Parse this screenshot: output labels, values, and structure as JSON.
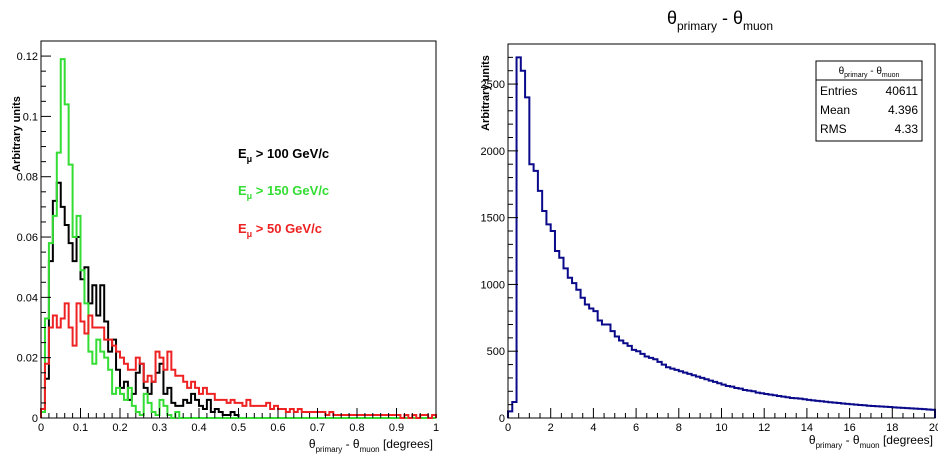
{
  "chart_data": [
    {
      "type": "histogram",
      "title": "",
      "xlabel": {
        "main": "θ",
        "sub1": "primary",
        "mid": " - θ",
        "sub2": "muon",
        "unit": " [degrees]"
      },
      "ylabel": "Arbitrary units",
      "xlim": [
        0,
        1
      ],
      "ylim": [
        0,
        0.125
      ],
      "xticks": [
        0,
        0.1,
        0.2,
        0.3,
        0.4,
        0.5,
        0.6,
        0.7,
        0.8,
        0.9,
        1
      ],
      "xtick_labels": [
        "0",
        "0.1",
        "0.2",
        "0.3",
        "0.4",
        "0.5",
        "0.6",
        "0.7",
        "0.8",
        "0.9",
        "1"
      ],
      "yticks": [
        0,
        0.02,
        0.04,
        0.06,
        0.08,
        0.1,
        0.12
      ],
      "ytick_labels": [
        "0",
        "0.02",
        "0.04",
        "0.06",
        "0.08",
        "0.1",
        "0.12"
      ],
      "bin_width": 0.01,
      "legend_placement": "right-middle",
      "series": [
        {
          "label_main": "E",
          "label_sub": "μ",
          "label_rest": " > 100 GeV/c",
          "color": "#000000",
          "values": [
            0.002,
            0.013,
            0.052,
            0.072,
            0.078,
            0.07,
            0.064,
            0.058,
            0.052,
            0.06,
            0.046,
            0.05,
            0.038,
            0.044,
            0.034,
            0.044,
            0.032,
            0.022,
            0.026,
            0.016,
            0.01,
            0.012,
            0.006,
            0.008,
            0.015,
            0.018,
            0.01,
            0.008,
            0.012,
            0.015,
            0.018,
            0.008,
            0.01,
            0.005,
            0.004,
            0.004,
            0.006,
            0.005,
            0.008,
            0.006,
            0.004,
            0.003,
            0.006,
            0.002,
            0.003,
            0.002,
            0.001,
            0.001,
            0.002,
            0.001,
            0,
            0,
            0,
            0,
            0,
            0,
            0,
            0,
            0,
            0,
            0,
            0,
            0,
            0,
            0,
            0,
            0,
            0,
            0,
            0,
            0,
            0,
            0,
            0,
            0,
            0,
            0,
            0,
            0,
            0,
            0,
            0,
            0,
            0,
            0,
            0,
            0,
            0,
            0,
            0,
            0,
            0,
            0,
            0,
            0,
            0,
            0,
            0,
            0,
            0
          ]
        },
        {
          "label_main": "E",
          "label_sub": "μ",
          "label_rest": " > 150 GeV/c",
          "color": "#33dd33",
          "values": [
            0.002,
            0.033,
            0.058,
            0.067,
            0.088,
            0.119,
            0.104,
            0.084,
            0.06,
            0.067,
            0.049,
            0.038,
            0.022,
            0.018,
            0.026,
            0.022,
            0.02,
            0.016,
            0.008,
            0.01,
            0.008,
            0.006,
            0.01,
            0.004,
            0.002,
            0.001,
            0.008,
            0.005,
            0.002,
            0.001,
            0.006,
            0.004,
            0.001,
            0,
            0.002,
            0,
            0,
            0,
            0,
            0,
            0,
            0,
            0,
            0,
            0,
            0,
            0,
            0,
            0,
            0,
            0,
            0,
            0,
            0,
            0,
            0,
            0,
            0,
            0,
            0,
            0,
            0,
            0,
            0,
            0,
            0,
            0,
            0,
            0,
            0,
            0,
            0,
            0,
            0,
            0,
            0,
            0,
            0,
            0,
            0,
            0,
            0,
            0,
            0,
            0,
            0,
            0,
            0,
            0,
            0,
            0,
            0,
            0,
            0,
            0,
            0,
            0,
            0,
            0,
            0
          ]
        },
        {
          "label_main": "E",
          "label_sub": "μ",
          "label_rest": " > 50 GeV/c",
          "color": "#ee2222",
          "values": [
            0.003,
            0.018,
            0.03,
            0.034,
            0.03,
            0.033,
            0.038,
            0.03,
            0.024,
            0.038,
            0.032,
            0.028,
            0.034,
            0.03,
            0.03,
            0.03,
            0.026,
            0.026,
            0.024,
            0.022,
            0.02,
            0.018,
            0.016,
            0.016,
            0.02,
            0.018,
            0.012,
            0.014,
            0.012,
            0.022,
            0.02,
            0.016,
            0.022,
            0.016,
            0.014,
            0.014,
            0.012,
            0.01,
            0.012,
            0.01,
            0.008,
            0.01,
            0.008,
            0.008,
            0.006,
            0.006,
            0.006,
            0.005,
            0.006,
            0.005,
            0.005,
            0.004,
            0.006,
            0.004,
            0.004,
            0.004,
            0.004,
            0.005,
            0.003,
            0.004,
            0.003,
            0.003,
            0.002,
            0.003,
            0.002,
            0.003,
            0.002,
            0.002,
            0.002,
            0.002,
            0.002,
            0.002,
            0.001,
            0.002,
            0.001,
            0.001,
            0.001,
            0.001,
            0.001,
            0.001,
            0.001,
            0.001,
            0.001,
            0.001,
            0.001,
            0.001,
            0.001,
            0.001,
            0.001,
            0.001,
            0.001,
            0,
            0.001,
            0,
            0.001,
            0,
            0.001,
            0.001,
            0,
            0.001
          ]
        }
      ]
    },
    {
      "type": "histogram",
      "title": {
        "main": "θ",
        "sub1": "primary",
        "mid": " - θ",
        "sub2": "muon"
      },
      "xlabel": {
        "main": "θ",
        "sub1": "primary",
        "mid": " - θ",
        "sub2": "muon",
        "unit": " [degrees]"
      },
      "ylabel": "Arbitrary units",
      "xlim": [
        0,
        20
      ],
      "ylim": [
        0,
        2800
      ],
      "xticks": [
        0,
        2,
        4,
        6,
        8,
        10,
        12,
        14,
        16,
        18,
        20
      ],
      "xtick_labels": [
        "0",
        "2",
        "4",
        "6",
        "8",
        "10",
        "12",
        "14",
        "16",
        "18",
        "20"
      ],
      "yticks": [
        0,
        500,
        1000,
        1500,
        2000,
        2500
      ],
      "ytick_labels": [
        "0",
        "500",
        "1000",
        "1500",
        "2000",
        "2500"
      ],
      "bin_width": 0.2,
      "series": [
        {
          "color": "#0a0a8a",
          "values": [
            50,
            120,
            2700,
            2600,
            2400,
            1900,
            1850,
            1700,
            1550,
            1450,
            1400,
            1250,
            1200,
            1120,
            1050,
            1010,
            960,
            900,
            850,
            820,
            800,
            730,
            700,
            700,
            650,
            610,
            580,
            560,
            540,
            510,
            500,
            480,
            460,
            450,
            440,
            420,
            400,
            380,
            370,
            360,
            350,
            340,
            330,
            320,
            310,
            300,
            290,
            280,
            270,
            260,
            250,
            240,
            235,
            225,
            220,
            210,
            205,
            200,
            190,
            185,
            180,
            175,
            170,
            165,
            160,
            155,
            150,
            148,
            145,
            140,
            136,
            132,
            128,
            125,
            122,
            118,
            115,
            112,
            109,
            106,
            103,
            100,
            97,
            95,
            92,
            90,
            88,
            86,
            84,
            82,
            80,
            78,
            76,
            74,
            72,
            70,
            68,
            66,
            64,
            62
          ]
        }
      ],
      "stats": {
        "title": {
          "main": "θ",
          "sub1": "primary",
          "mid": " - θ",
          "sub2": "muon"
        },
        "rows": [
          {
            "name": "Entries",
            "value": "40611"
          },
          {
            "name": "Mean",
            "value": "4.396"
          },
          {
            "name": "RMS",
            "value": "4.33"
          }
        ]
      }
    }
  ]
}
